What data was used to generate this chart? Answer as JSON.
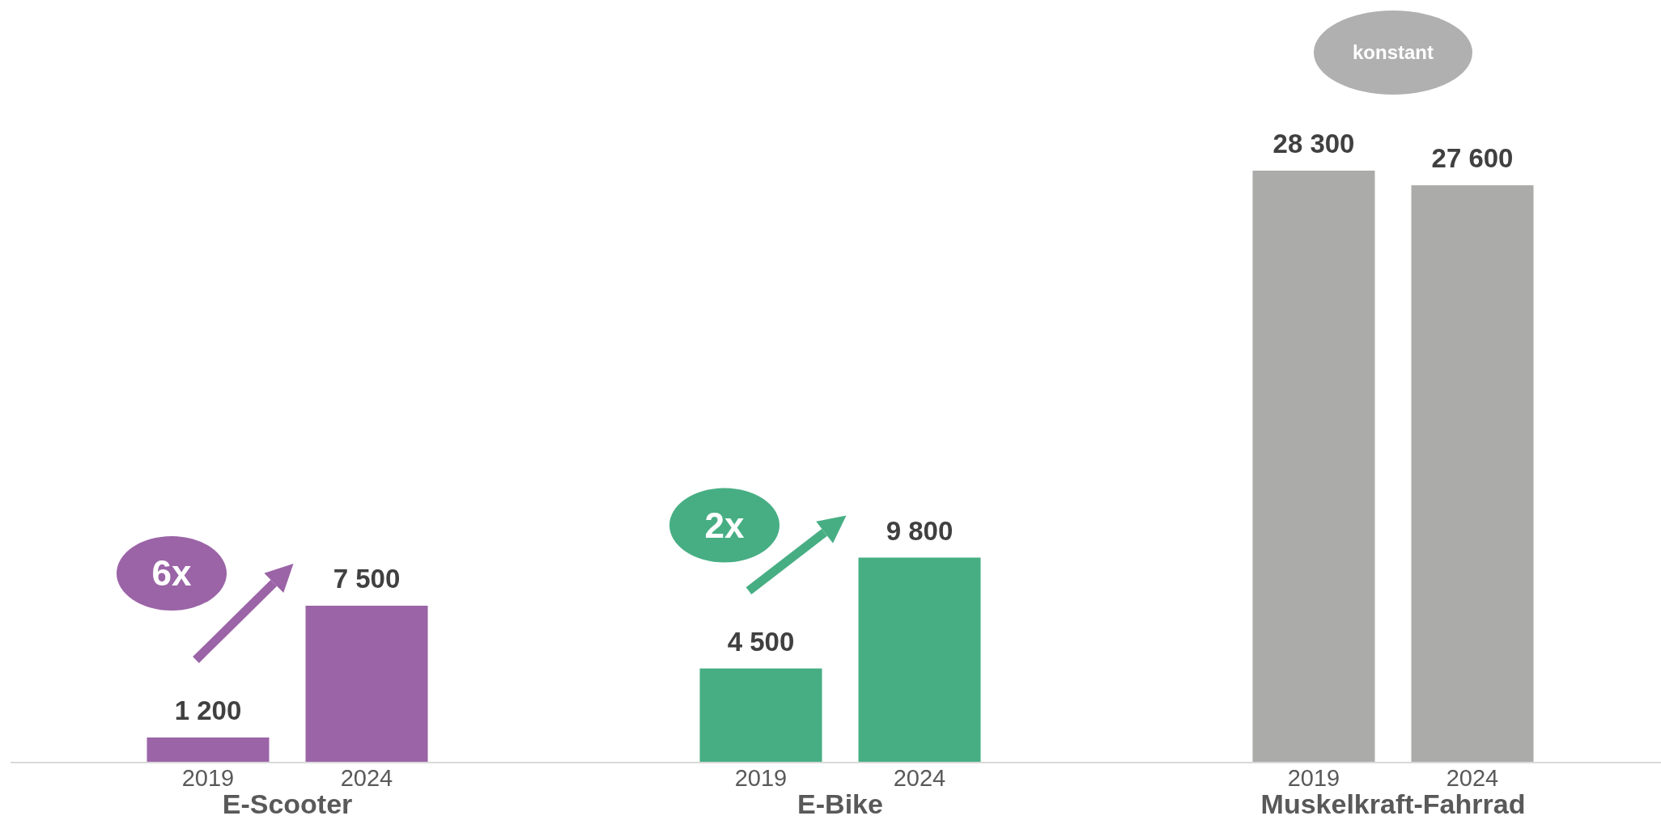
{
  "chart_data": {
    "type": "bar",
    "categories": [
      "E-Scooter",
      "E-Bike",
      "Muskelkraft-Fahrrad"
    ],
    "series": [
      {
        "name": "2019",
        "colors": [
          "#9b64a7",
          "#47ae84",
          "#abacaa"
        ],
        "values": [
          1200,
          4500,
          28300
        ],
        "value_labels": [
          "1 200",
          "4 500",
          "28 300"
        ]
      },
      {
        "name": "2024",
        "colors": [
          "#9b64a7",
          "#47ae84",
          "#abacaa"
        ],
        "values": [
          7500,
          9800,
          27600
        ],
        "value_labels": [
          "7 500",
          "9 800",
          "27 600"
        ]
      }
    ],
    "annotations": [
      "6x",
      "2x",
      "konstant"
    ]
  }
}
